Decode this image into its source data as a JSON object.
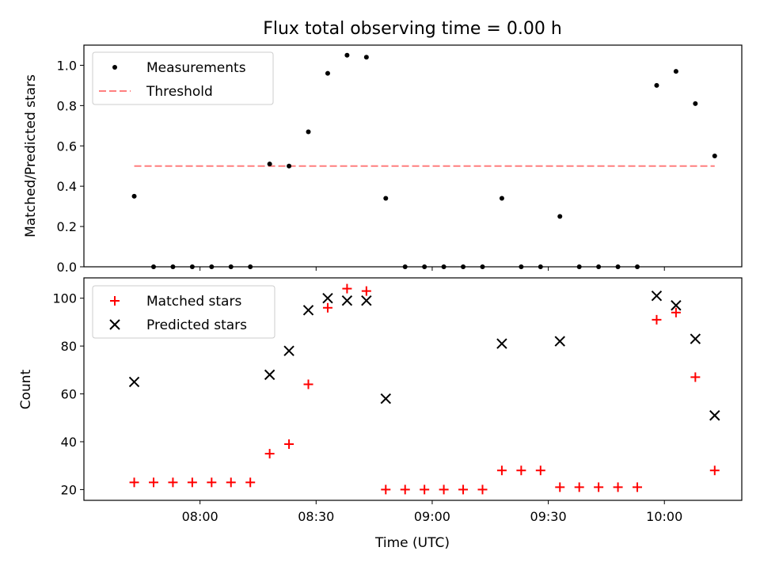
{
  "title": "Flux total observing time = 0.00 h",
  "chart_data": [
    {
      "type": "scatter",
      "ylabel": "Matched/Predicted stars",
      "ylim": [
        0,
        1.1
      ],
      "yticks": [
        0.0,
        0.2,
        0.4,
        0.6,
        0.8,
        1.0
      ],
      "ytick_labels": [
        "0.0",
        "0.2",
        "0.4",
        "0.6",
        "0.8",
        "1.0"
      ],
      "legend": {
        "placement": "top-left",
        "entries": [
          "Measurements",
          "Threshold"
        ]
      },
      "series": [
        {
          "name": "Measurements",
          "marker": "dot",
          "color": "#000000",
          "x": [
            "07:43",
            "07:48",
            "07:53",
            "07:58",
            "08:03",
            "08:08",
            "08:13",
            "08:18",
            "08:23",
            "08:28",
            "08:33",
            "08:38",
            "08:43",
            "08:48",
            "08:53",
            "08:58",
            "09:03",
            "09:08",
            "09:13",
            "09:18",
            "09:23",
            "09:28",
            "09:33",
            "09:38",
            "09:43",
            "09:48",
            "09:53",
            "09:58",
            "10:03",
            "10:08",
            "10:13"
          ],
          "y": [
            0.35,
            0.0,
            0.0,
            0.0,
            0.0,
            0.0,
            0.0,
            0.51,
            0.5,
            0.67,
            0.96,
            1.05,
            1.04,
            0.34,
            0.0,
            0.0,
            0.0,
            0.0,
            0.0,
            0.34,
            0.0,
            0.0,
            0.25,
            0.0,
            0.0,
            0.0,
            0.0,
            0.9,
            0.97,
            0.81,
            0.55
          ]
        },
        {
          "name": "Threshold",
          "marker": "dashed-line",
          "color": "#ff7f7f",
          "x": [
            "07:43",
            "10:13"
          ],
          "y": [
            0.5,
            0.5
          ]
        }
      ]
    },
    {
      "type": "scatter",
      "xlabel": "Time (UTC)",
      "ylabel": "Count",
      "ylim": [
        15.5,
        108.5
      ],
      "yticks": [
        20,
        40,
        60,
        80,
        100
      ],
      "ytick_labels": [
        "20",
        "40",
        "60",
        "80",
        "100"
      ],
      "xticks": [
        "08:00",
        "08:30",
        "09:00",
        "09:30",
        "10:00"
      ],
      "xlim": [
        "07:30",
        "10:20"
      ],
      "legend": {
        "placement": "top-left",
        "entries": [
          "Matched stars",
          "Predicted stars"
        ]
      },
      "series": [
        {
          "name": "Matched stars",
          "marker": "plus",
          "color": "#ff0000",
          "x": [
            "07:43",
            "07:48",
            "07:53",
            "07:58",
            "08:03",
            "08:08",
            "08:13",
            "08:18",
            "08:23",
            "08:28",
            "08:33",
            "08:38",
            "08:43",
            "08:48",
            "08:53",
            "08:58",
            "09:03",
            "09:08",
            "09:13",
            "09:18",
            "09:23",
            "09:28",
            "09:33",
            "09:38",
            "09:43",
            "09:48",
            "09:53",
            "09:58",
            "10:03",
            "10:08",
            "10:13"
          ],
          "y": [
            23,
            23,
            23,
            23,
            23,
            23,
            23,
            35,
            39,
            64,
            96,
            104,
            103,
            20,
            20,
            20,
            20,
            20,
            20,
            28,
            28,
            28,
            21,
            21,
            21,
            21,
            21,
            91,
            94,
            67,
            28
          ]
        },
        {
          "name": "Predicted stars",
          "marker": "x",
          "color": "#000000",
          "x": [
            "07:43",
            "08:18",
            "08:23",
            "08:28",
            "08:33",
            "08:38",
            "08:43",
            "08:48",
            "09:18",
            "09:33",
            "09:58",
            "10:03",
            "10:08",
            "10:13"
          ],
          "y": [
            65,
            68,
            78,
            95,
            100,
            99,
            99,
            58,
            81,
            82,
            101,
            97,
            83,
            51
          ]
        }
      ]
    }
  ]
}
